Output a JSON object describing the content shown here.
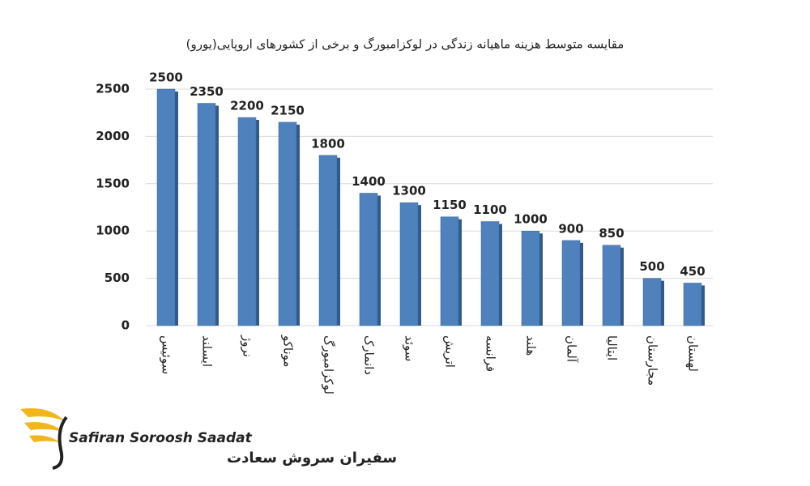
{
  "chart_data": {
    "type": "bar",
    "title": "مقایسه متوسط هزینه ماهیانه زندگی در لوکزامبورگ و برخی از کشورهای اروپایی(یورو)",
    "categories": [
      "سوئیس",
      "ایسلند",
      "نروژ",
      "موناکو",
      "لوکزامبورگ",
      "دانمارک",
      "سوئد",
      "اتریش",
      "فرانسه",
      "هلند",
      "آلمان",
      "ایتالیا",
      "مجارستان",
      "لهستان"
    ],
    "values": [
      2500,
      2350,
      2200,
      2150,
      1800,
      1400,
      1300,
      1150,
      1100,
      1000,
      900,
      850,
      500,
      450
    ],
    "color": "#4f81bd",
    "ylim": [
      0,
      2500
    ],
    "yticks": [
      0,
      500,
      1000,
      1500,
      2000,
      2500
    ],
    "grid": true
  },
  "logo": {
    "name_latin": "Safiran Soroosh Saadat",
    "name_persian": "سفیران سروش سعادت"
  }
}
